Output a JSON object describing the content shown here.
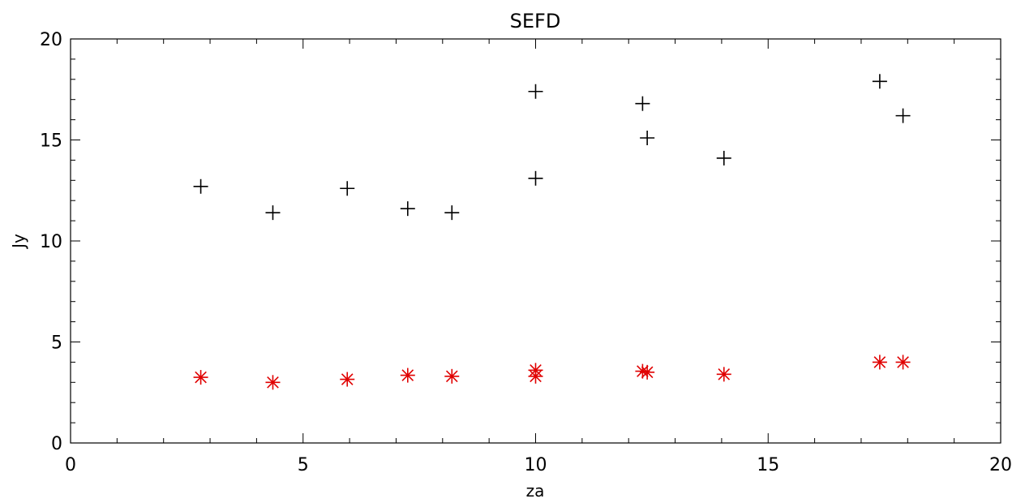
{
  "chart_data": {
    "type": "scatter",
    "title": "SEFD",
    "xlabel": "za",
    "ylabel": "Jy",
    "xlim": [
      0,
      20
    ],
    "ylim": [
      0,
      20
    ],
    "x_ticks": [
      "0",
      "5",
      "10",
      "15",
      "20"
    ],
    "y_ticks": [
      "0",
      "5",
      "10",
      "15",
      "20"
    ],
    "grid": false,
    "series": [
      {
        "marker": "plus",
        "color": "#000000",
        "points": [
          {
            "x": 2.8,
            "y": 12.7
          },
          {
            "x": 4.35,
            "y": 11.4
          },
          {
            "x": 5.95,
            "y": 12.6
          },
          {
            "x": 7.25,
            "y": 11.6
          },
          {
            "x": 8.2,
            "y": 11.4
          },
          {
            "x": 10.0,
            "y": 17.4
          },
          {
            "x": 10.0,
            "y": 13.1
          },
          {
            "x": 12.3,
            "y": 16.8
          },
          {
            "x": 12.4,
            "y": 15.1
          },
          {
            "x": 14.05,
            "y": 14.1
          },
          {
            "x": 17.4,
            "y": 17.9
          },
          {
            "x": 17.9,
            "y": 16.2
          }
        ]
      },
      {
        "marker": "asterisk",
        "color": "#e00000",
        "points": [
          {
            "x": 2.8,
            "y": 3.25
          },
          {
            "x": 4.35,
            "y": 3.0
          },
          {
            "x": 5.95,
            "y": 3.15
          },
          {
            "x": 7.25,
            "y": 3.35
          },
          {
            "x": 8.2,
            "y": 3.3
          },
          {
            "x": 10.0,
            "y": 3.6
          },
          {
            "x": 10.0,
            "y": 3.3
          },
          {
            "x": 12.3,
            "y": 3.55
          },
          {
            "x": 12.4,
            "y": 3.5
          },
          {
            "x": 14.05,
            "y": 3.4
          },
          {
            "x": 17.4,
            "y": 4.0
          },
          {
            "x": 17.9,
            "y": 4.0
          }
        ]
      }
    ]
  }
}
